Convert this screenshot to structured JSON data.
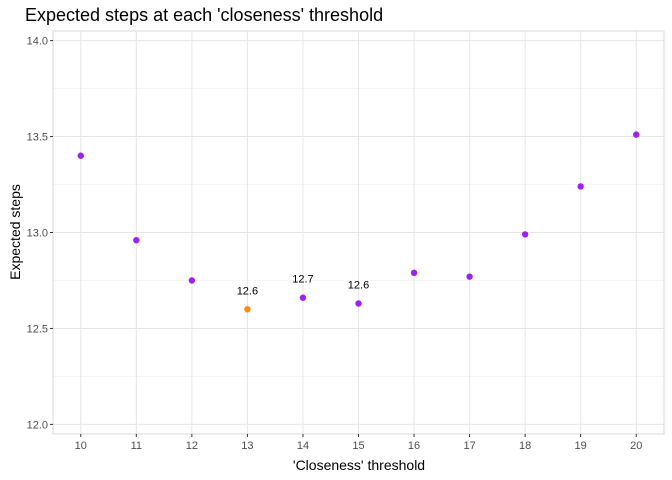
{
  "chart_data": {
    "type": "scatter",
    "title": "Expected steps at each 'closeness' threshold",
    "xlabel": "'Closeness' threshold",
    "ylabel": "Expected steps",
    "xlim": [
      9.5,
      20.5
    ],
    "ylim": [
      11.95,
      14.05
    ],
    "x_ticks": [
      10,
      11,
      12,
      13,
      14,
      15,
      16,
      17,
      18,
      19,
      20
    ],
    "y_ticks": [
      12.0,
      12.5,
      13.0,
      13.5,
      14.0
    ],
    "y_tick_labels": [
      "12.0",
      "12.5",
      "13.0",
      "13.5",
      "14.0"
    ],
    "colors": {
      "default": "#a020f0",
      "highlight": "#ff8c00"
    },
    "points": [
      {
        "x": 10,
        "y": 13.4,
        "highlight": false,
        "label": ""
      },
      {
        "x": 11,
        "y": 12.96,
        "highlight": false,
        "label": ""
      },
      {
        "x": 12,
        "y": 12.75,
        "highlight": false,
        "label": ""
      },
      {
        "x": 13,
        "y": 12.6,
        "highlight": true,
        "label": "12.6"
      },
      {
        "x": 14,
        "y": 12.66,
        "highlight": false,
        "label": "12.7"
      },
      {
        "x": 15,
        "y": 12.63,
        "highlight": false,
        "label": "12.6"
      },
      {
        "x": 16,
        "y": 12.79,
        "highlight": false,
        "label": ""
      },
      {
        "x": 17,
        "y": 12.77,
        "highlight": false,
        "label": ""
      },
      {
        "x": 18,
        "y": 12.99,
        "highlight": false,
        "label": ""
      },
      {
        "x": 19,
        "y": 13.24,
        "highlight": false,
        "label": ""
      },
      {
        "x": 20,
        "y": 13.51,
        "highlight": false,
        "label": ""
      }
    ]
  }
}
